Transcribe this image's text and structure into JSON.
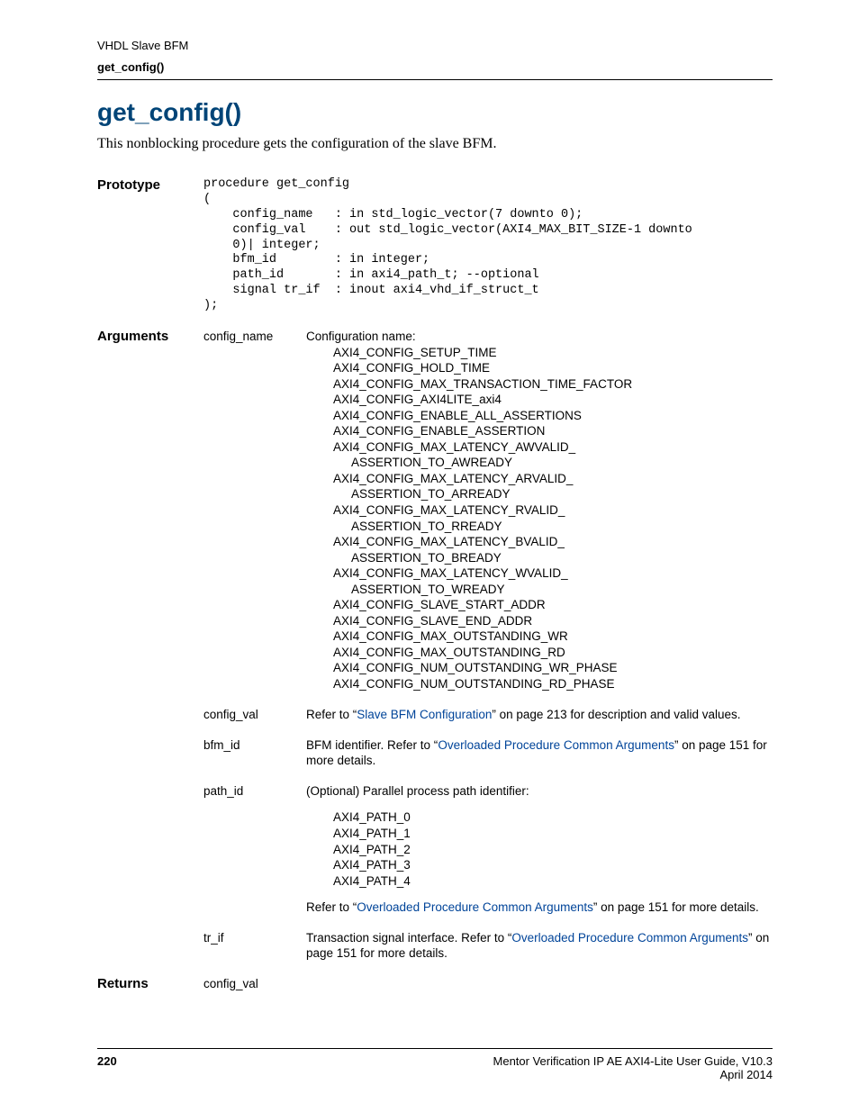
{
  "header": {
    "section": "VHDL Slave BFM",
    "page_title_small": "get_config()"
  },
  "title": "get_config()",
  "intro": "This nonblocking procedure gets the configuration of the slave BFM.",
  "prototype": {
    "label": "Prototype",
    "code": "procedure get_config\n(\n    config_name   : in std_logic_vector(7 downto 0);\n    config_val    : out std_logic_vector(AXI4_MAX_BIT_SIZE-1 downto\n    0)| integer;\n    bfm_id        : in integer;\n    path_id       : in axi4_path_t; --optional\n    signal tr_if  : inout axi4_vhd_if_struct_t\n);"
  },
  "arguments": {
    "label": "Arguments",
    "config_name": {
      "name": "config_name",
      "intro": "Configuration name:",
      "items": [
        "AXI4_CONFIG_SETUP_TIME",
        "AXI4_CONFIG_HOLD_TIME",
        "AXI4_CONFIG_MAX_TRANSACTION_TIME_FACTOR",
        "AXI4_CONFIG_AXI4LITE_axi4",
        "AXI4_CONFIG_ENABLE_ALL_ASSERTIONS",
        "AXI4_CONFIG_ENABLE_ASSERTION"
      ],
      "pairs": [
        {
          "a": "AXI4_CONFIG_MAX_LATENCY_AWVALID_",
          "b": "ASSERTION_TO_AWREADY"
        },
        {
          "a": "AXI4_CONFIG_MAX_LATENCY_ARVALID_",
          "b": "ASSERTION_TO_ARREADY"
        },
        {
          "a": "AXI4_CONFIG_MAX_LATENCY_RVALID_",
          "b": "ASSERTION_TO_RREADY"
        },
        {
          "a": "AXI4_CONFIG_MAX_LATENCY_BVALID_",
          "b": "ASSERTION_TO_BREADY"
        },
        {
          "a": "AXI4_CONFIG_MAX_LATENCY_WVALID_",
          "b": "ASSERTION_TO_WREADY"
        }
      ],
      "items2": [
        "AXI4_CONFIG_SLAVE_START_ADDR",
        "AXI4_CONFIG_SLAVE_END_ADDR",
        "AXI4_CONFIG_MAX_OUTSTANDING_WR",
        "AXI4_CONFIG_MAX_OUTSTANDING_RD",
        "AXI4_CONFIG_NUM_OUTSTANDING_WR_PHASE",
        "AXI4_CONFIG_NUM_OUTSTANDING_RD_PHASE"
      ]
    },
    "config_val": {
      "name": "config_val",
      "pre": "Refer to “",
      "link": "Slave BFM Configuration",
      "post": "” on page 213 for description and valid values."
    },
    "bfm_id": {
      "name": "bfm_id",
      "pre": "BFM identifier. Refer to “",
      "link": "Overloaded Procedure Common Arguments",
      "post": "” on page 151 for more details."
    },
    "path_id": {
      "name": "path_id",
      "intro": "(Optional) Parallel process path identifier:",
      "items": [
        "AXI4_PATH_0",
        "AXI4_PATH_1",
        "AXI4_PATH_2",
        "AXI4_PATH_3",
        "AXI4_PATH_4"
      ],
      "pre": "Refer to “",
      "link": "Overloaded Procedure Common Arguments",
      "post": "” on page 151 for more details."
    },
    "tr_if": {
      "name": "tr_if",
      "pre": "Transaction signal interface. Refer to “",
      "link": "Overloaded Procedure Common Arguments",
      "post": "” on page 151 for more details."
    }
  },
  "returns": {
    "label": "Returns",
    "value": "config_val"
  },
  "footer": {
    "page": "220",
    "guide": "Mentor Verification IP AE AXI4-Lite User Guide, V10.3",
    "date": "April 2014"
  }
}
